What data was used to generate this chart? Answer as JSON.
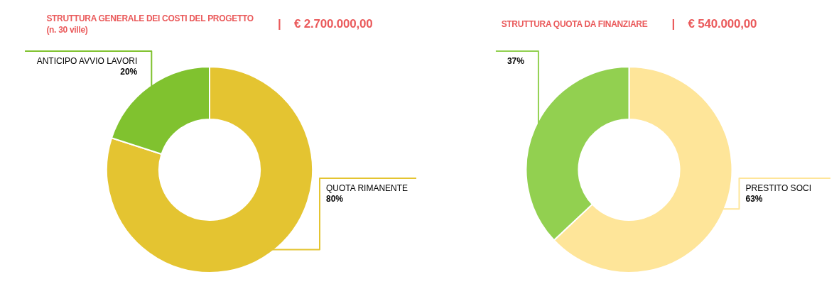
{
  "chart_data": [
    {
      "type": "donut",
      "title": "STRUTTURA GENERALE DEI COSTI DEL PROGETTO",
      "subtitle": "(n. 30 ville)",
      "annotations": [
        "| € 2.700.000,00"
      ],
      "categories": [
        "QUOTA RIMANENTE",
        "ANTICIPO AVVIO LAVORI"
      ],
      "values": [
        80,
        20
      ],
      "colors": [
        "#e4c431",
        "#80c22f"
      ],
      "value_labels": [
        "80%",
        "20%"
      ]
    },
    {
      "type": "donut",
      "title": "STRUTTURA QUOTA DA FINANZIARE",
      "annotations": [
        "| € 540.000,00"
      ],
      "categories": [
        "PRESTITO SOCI",
        null
      ],
      "values": [
        63,
        37
      ],
      "colors": [
        "#fee599",
        "#92d050"
      ],
      "value_labels": [
        "63%",
        "37%"
      ]
    }
  ]
}
